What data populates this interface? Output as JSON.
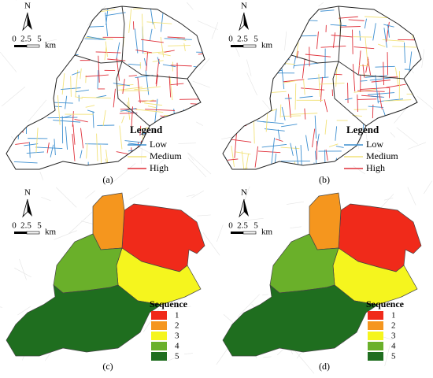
{
  "panels": [
    {
      "label": "(a)",
      "north": "N",
      "scale": {
        "ticks": [
          "0",
          "2.5",
          "5"
        ],
        "unit": "km"
      },
      "legend": {
        "title": "Legend",
        "kind": "roads",
        "items": [
          {
            "label": "Low",
            "color": "#3d8fd0"
          },
          {
            "label": "Medium",
            "color": "#f2e27a"
          },
          {
            "label": "High",
            "color": "#e0303a"
          }
        ]
      }
    },
    {
      "label": "(b)",
      "north": "N",
      "scale": {
        "ticks": [
          "0",
          "2.5",
          "5"
        ],
        "unit": "km"
      },
      "legend": {
        "title": "Legend",
        "kind": "roads",
        "items": [
          {
            "label": "Low",
            "color": "#3d8fd0"
          },
          {
            "label": "Medium",
            "color": "#f2e27a"
          },
          {
            "label": "High",
            "color": "#e0303a"
          }
        ]
      }
    },
    {
      "label": "(c)",
      "north": "N",
      "scale": {
        "ticks": [
          "0",
          "2.5",
          "5"
        ],
        "unit": "km"
      },
      "legend": {
        "title": "Sequence",
        "kind": "regions",
        "items": [
          {
            "label": "1",
            "color": "#f02a1a"
          },
          {
            "label": "2",
            "color": "#f5961e"
          },
          {
            "label": "3",
            "color": "#f5f51e"
          },
          {
            "label": "4",
            "color": "#6ab02a"
          },
          {
            "label": "5",
            "color": "#1f6e1f"
          }
        ]
      }
    },
    {
      "label": "(d)",
      "north": "N",
      "scale": {
        "ticks": [
          "0",
          "2.5",
          "5"
        ],
        "unit": "km"
      },
      "legend": {
        "title": "Sequence",
        "kind": "regions",
        "items": [
          {
            "label": "1",
            "color": "#f02a1a"
          },
          {
            "label": "2",
            "color": "#f5961e"
          },
          {
            "label": "3",
            "color": "#f5f51e"
          },
          {
            "label": "4",
            "color": "#6ab02a"
          },
          {
            "label": "5",
            "color": "#1f6e1f"
          }
        ]
      }
    }
  ]
}
